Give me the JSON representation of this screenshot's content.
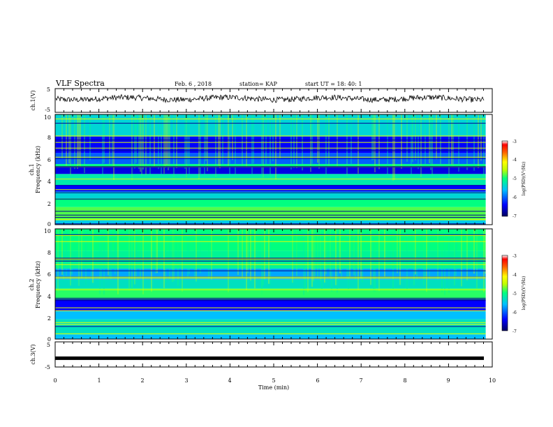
{
  "header": {
    "title": "VLF Spectra",
    "date": "Feb. 6 , 2018",
    "station": "station= KAP",
    "start": "start UT = 18: 40: 1"
  },
  "colors": {
    "ch1_trace": "#000000",
    "ch3_trace": "#000000",
    "colormap": [
      "#000080",
      "#0000ff",
      "#00bfff",
      "#00ff80",
      "#c0ff00",
      "#ffff00",
      "#ff8000",
      "#ff0000",
      "#ffffff"
    ]
  },
  "chart_data": [
    {
      "type": "line",
      "name": "ch1",
      "ylabel": "ch.1(V)",
      "ylim": [
        -5,
        5
      ],
      "yticks": [
        "5",
        "-5"
      ],
      "xlim": [
        0,
        10
      ],
      "trace_level": 0.8,
      "trace_amplitude": 1.2
    },
    {
      "type": "heatmap",
      "name": "ch1-spectrogram",
      "ylabel_line1": "ch.1",
      "ylabel_line2": "Frequency (kHz)",
      "ylim": [
        0,
        10
      ],
      "yticks": [
        "0",
        "2",
        "4",
        "6",
        "8",
        "10"
      ],
      "xlim": [
        0,
        9.85
      ],
      "colorbar": {
        "label": "log(PSD)(V²/Hz)",
        "range": [
          -7,
          -3
        ],
        "ticks": [
          "-3",
          "-4",
          "-5",
          "-6",
          "-7"
        ]
      },
      "bands": [
        {
          "from": 0.0,
          "to": 0.4,
          "value": -5.5
        },
        {
          "from": 0.4,
          "to": 1.6,
          "value": -4.8
        },
        {
          "from": 1.6,
          "to": 2.4,
          "value": -5.0
        },
        {
          "from": 2.4,
          "to": 3.0,
          "value": -5.4
        },
        {
          "from": 3.0,
          "to": 3.6,
          "value": -6.4
        },
        {
          "from": 3.6,
          "to": 4.6,
          "value": -5.2
        },
        {
          "from": 4.6,
          "to": 5.2,
          "value": -6.5
        },
        {
          "from": 5.2,
          "to": 5.5,
          "value": -5.0
        },
        {
          "from": 5.5,
          "to": 6.5,
          "value": -6.0
        },
        {
          "from": 6.5,
          "to": 8.0,
          "value": -6.4
        },
        {
          "from": 8.0,
          "to": 10.0,
          "value": -5.4
        }
      ]
    },
    {
      "type": "heatmap",
      "name": "ch2-spectrogram",
      "ylabel_line1": "ch.2",
      "ylabel_line2": "Frequency (kHz)",
      "ylim": [
        0,
        10
      ],
      "yticks": [
        "0",
        "2",
        "4",
        "6",
        "8",
        "10"
      ],
      "xlim": [
        0,
        9.85
      ],
      "colorbar": {
        "label": "log(PSD)(V²/Hz)",
        "range": [
          -7,
          -3
        ],
        "ticks": [
          "-3",
          "-4",
          "-5",
          "-6",
          "-7"
        ]
      },
      "bands": [
        {
          "from": 0.0,
          "to": 0.4,
          "value": -5.6
        },
        {
          "from": 0.4,
          "to": 1.8,
          "value": -5.3
        },
        {
          "from": 1.8,
          "to": 2.6,
          "value": -5.6
        },
        {
          "from": 2.6,
          "to": 3.6,
          "value": -6.4
        },
        {
          "from": 3.6,
          "to": 4.6,
          "value": -4.9
        },
        {
          "from": 4.6,
          "to": 5.4,
          "value": -5.3
        },
        {
          "from": 5.4,
          "to": 6.4,
          "value": -5.7
        },
        {
          "from": 6.4,
          "to": 8.0,
          "value": -5.1
        },
        {
          "from": 8.0,
          "to": 10.0,
          "value": -5.0
        }
      ]
    },
    {
      "type": "line",
      "name": "ch3",
      "ylabel": "ch.3(V)",
      "ylim": [
        -5,
        5
      ],
      "yticks": [
        "5",
        "0",
        "-5"
      ],
      "xlim": [
        0,
        9.85
      ],
      "trace_level": -1.5
    }
  ],
  "xaxis": {
    "label": "Time (min)",
    "ticks": [
      "0",
      "1",
      "2",
      "3",
      "4",
      "5",
      "6",
      "7",
      "8",
      "9",
      "10"
    ]
  }
}
